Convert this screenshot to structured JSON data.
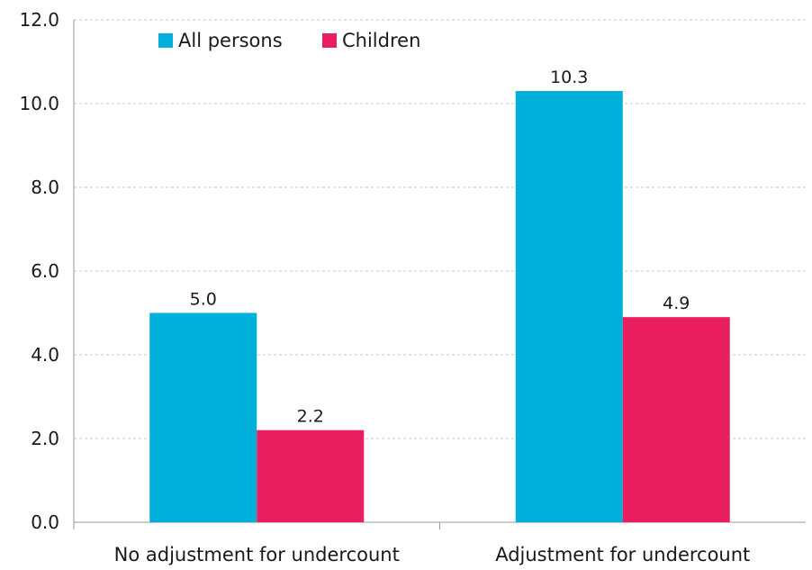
{
  "chart_data": {
    "type": "bar",
    "categories": [
      "No adjustment for undercount",
      "Adjustment  for undercount"
    ],
    "series": [
      {
        "name": "All persons",
        "color": "#00b0da",
        "values": [
          5.0,
          10.3
        ],
        "labels": [
          "5.0",
          "10.3"
        ]
      },
      {
        "name": "Children",
        "color": "#e91e5f",
        "values": [
          2.2,
          4.9
        ],
        "labels": [
          "2.2",
          "4.9"
        ]
      }
    ],
    "ylim": [
      0,
      12
    ],
    "yticks": [
      0,
      2,
      4,
      6,
      8,
      10,
      12
    ],
    "ytick_labels": [
      "0.0",
      "2.0",
      "4.0",
      "6.0",
      "8.0",
      "10.0",
      "12.0"
    ],
    "title": "",
    "xlabel": "",
    "ylabel": "",
    "grid": true,
    "legend_position": "top-left"
  }
}
